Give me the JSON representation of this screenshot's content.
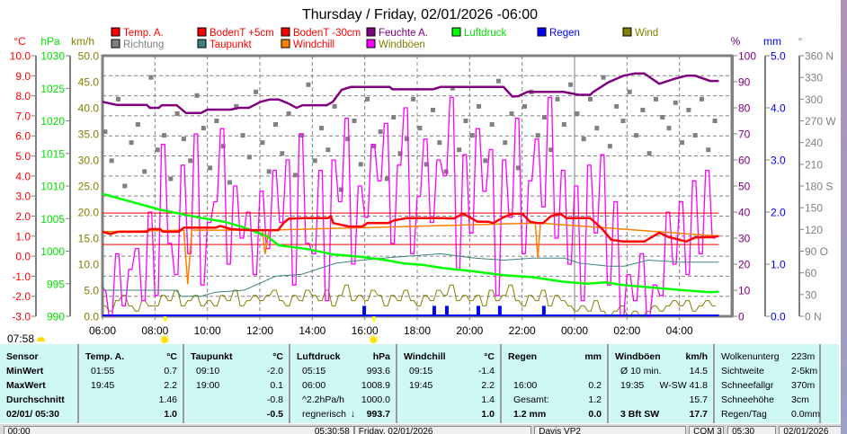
{
  "chart_data": {
    "type": "line",
    "title": "Thursday / Friday, 02/01/2026  -06:00",
    "x_unit": "hours since 06:00",
    "xlim": [
      0,
      24
    ],
    "x_tick_labels": [
      "06:00",
      "08:00",
      "10:00",
      "12:00",
      "14:00",
      "16:00",
      "18:00",
      "20:00",
      "22:00",
      "00:00",
      "02:00",
      "04:00"
    ],
    "grid": true,
    "legend": [
      {
        "label": "Temp. A.",
        "color": "#ff0000",
        "text_color": "#ff0000"
      },
      {
        "label": "BodenT +5cm",
        "color": "#ff0000",
        "text_color": "#ff0000"
      },
      {
        "label": "BodenT -30cm",
        "color": "#ff0000",
        "text_color": "#ff0000"
      },
      {
        "label": "Feuchte A.",
        "color": "#800080",
        "text_color": "#800080"
      },
      {
        "label": "Luftdruck",
        "color": "#00ff00",
        "text_color": "#00e000"
      },
      {
        "label": "Regen",
        "color": "#0000ff",
        "text_color": "#0000ff"
      },
      {
        "label": "Wind",
        "color": "#808000",
        "text_color": "#808000"
      },
      {
        "label": "Richtung",
        "color": "#808080",
        "text_color": "#808080"
      },
      {
        "label": "Taupunkt",
        "color": "#408080",
        "text_color": "#ff0000"
      },
      {
        "label": "Windchill",
        "color": "#ff8000",
        "text_color": "#ff0000"
      },
      {
        "label": "Windböen",
        "color": "#ff00ff",
        "text_color": "#808000"
      }
    ],
    "axes": {
      "temp": {
        "unit": "°C",
        "range": [
          -3,
          10
        ],
        "color": "#ff0000"
      },
      "pressure": {
        "unit": "hPa",
        "range": [
          990,
          1030
        ],
        "color": "#00e000"
      },
      "wind": {
        "unit": "km/h",
        "range": [
          0,
          50
        ],
        "color": "#808000"
      },
      "humidity": {
        "unit": "%",
        "range": [
          0,
          100
        ],
        "color": "#800080"
      },
      "rain": {
        "unit": "mm",
        "range": [
          0,
          5
        ],
        "color": "#0000ff"
      },
      "direction": {
        "unit": "°",
        "range": [
          0,
          360
        ],
        "color": "#808080",
        "compass": {
          "0": "N",
          "90": "O",
          "180": "S",
          "270": "W",
          "360": "N"
        }
      }
    },
    "series": {
      "temp": [
        [
          0,
          1.22
        ],
        [
          0.3,
          1.1
        ],
        [
          0.6,
          1.22
        ],
        [
          1.7,
          1.22
        ],
        [
          1.8,
          1.35
        ],
        [
          2.2,
          1.35
        ],
        [
          2.3,
          1.22
        ],
        [
          2.9,
          1.22
        ],
        [
          3.1,
          1.42
        ],
        [
          4.3,
          1.42
        ],
        [
          4.5,
          1.5
        ],
        [
          4.9,
          1.35
        ],
        [
          5.6,
          1.3
        ],
        [
          6.7,
          1.3
        ],
        [
          6.9,
          1.65
        ],
        [
          7.1,
          1.87
        ],
        [
          7.7,
          1.9
        ],
        [
          8.6,
          1.9
        ],
        [
          8.7,
          2.0
        ],
        [
          8.8,
          1.65
        ],
        [
          9.4,
          1.48
        ],
        [
          9.9,
          1.48
        ],
        [
          10.1,
          1.65
        ],
        [
          10.9,
          1.65
        ],
        [
          11.1,
          1.78
        ],
        [
          11.6,
          1.9
        ],
        [
          12.9,
          1.9
        ],
        [
          13.4,
          1.88
        ],
        [
          13.75,
          2.12
        ],
        [
          14.3,
          1.72
        ],
        [
          14.7,
          1.72
        ],
        [
          14.9,
          1.65
        ],
        [
          15.3,
          1.95
        ],
        [
          15.65,
          2.12
        ],
        [
          16.0,
          2.12
        ],
        [
          16.3,
          1.72
        ],
        [
          16.6,
          1.65
        ],
        [
          16.8,
          1.65
        ],
        [
          17.1,
          2.0
        ],
        [
          17.45,
          2.12
        ],
        [
          17.7,
          1.9
        ],
        [
          18.6,
          1.9
        ],
        [
          19.06,
          1.35
        ],
        [
          19.4,
          0.82
        ],
        [
          19.86,
          0.73
        ],
        [
          20.66,
          0.73
        ],
        [
          21.23,
          1.17
        ],
        [
          21.6,
          0.95
        ],
        [
          21.9,
          0.85
        ],
        [
          22.25,
          0.73
        ],
        [
          22.6,
          0.93
        ],
        [
          23.2,
          0.95
        ],
        [
          23.5,
          1.0
        ]
      ],
      "windchill": [
        [
          0,
          1.22
        ],
        [
          3.1,
          1.3
        ],
        [
          3.25,
          -1.4
        ],
        [
          3.4,
          1.3
        ],
        [
          6.1,
          1.3
        ],
        [
          6.2,
          0.1
        ],
        [
          6.35,
          1.3
        ],
        [
          16.5,
          1.65
        ],
        [
          16.6,
          -0.1
        ],
        [
          16.7,
          1.65
        ],
        [
          23.5,
          1.0
        ]
      ],
      "dewpoint": [
        [
          0,
          -1.48
        ],
        [
          0.1,
          -1.7
        ],
        [
          2.8,
          -1.7
        ],
        [
          3.0,
          -2.0
        ],
        [
          3.75,
          -2.0
        ],
        [
          4.3,
          -1.8
        ],
        [
          5.4,
          -1.7
        ],
        [
          6.0,
          -1.35
        ],
        [
          6.6,
          -1.0
        ],
        [
          7.6,
          -0.9
        ],
        [
          8.9,
          -0.35
        ],
        [
          9.9,
          -0.2
        ],
        [
          11.1,
          -0.05
        ],
        [
          12.9,
          0.12
        ],
        [
          14.2,
          -0.1
        ],
        [
          15.3,
          -0.2
        ],
        [
          16.4,
          -0.1
        ],
        [
          17.6,
          -0.1
        ],
        [
          18.2,
          -0.35
        ],
        [
          19.3,
          -0.5
        ],
        [
          19.9,
          -0.5
        ],
        [
          20.8,
          -0.2
        ],
        [
          22.0,
          -0.3
        ],
        [
          23.5,
          -0.3
        ]
      ],
      "soil_5cm": [
        [
          0,
          2.15
        ],
        [
          23.5,
          2.15
        ]
      ],
      "soil_30cm": [
        [
          0,
          0.58
        ],
        [
          23.5,
          0.58
        ]
      ],
      "humidity": [
        [
          0,
          82.3
        ],
        [
          0.55,
          81.1
        ],
        [
          1.69,
          81.1
        ],
        [
          1.8,
          80
        ],
        [
          2.15,
          80
        ],
        [
          2.26,
          81
        ],
        [
          2.83,
          81
        ],
        [
          3.18,
          78
        ],
        [
          3.75,
          78
        ],
        [
          4.0,
          79.3
        ],
        [
          4.89,
          79.3
        ],
        [
          5.2,
          80
        ],
        [
          5.58,
          80
        ],
        [
          6.03,
          82.3
        ],
        [
          6.38,
          83.2
        ],
        [
          6.72,
          83.2
        ],
        [
          7.06,
          81.8
        ],
        [
          7.4,
          80
        ],
        [
          7.63,
          81
        ],
        [
          8.55,
          81
        ],
        [
          8.78,
          82.3
        ],
        [
          9.12,
          86.9
        ],
        [
          9.46,
          88
        ],
        [
          10.95,
          88
        ],
        [
          11.06,
          87.1
        ],
        [
          12.6,
          87.1
        ],
        [
          12.89,
          88
        ],
        [
          15.29,
          88
        ],
        [
          15.63,
          84.3
        ],
        [
          15.86,
          84.5
        ],
        [
          16.2,
          86.1
        ],
        [
          17.58,
          86.1
        ],
        [
          18.15,
          85
        ],
        [
          18.6,
          85
        ],
        [
          18.7,
          86
        ],
        [
          19.29,
          89.8
        ],
        [
          19.86,
          92.3
        ],
        [
          20.3,
          93.2
        ],
        [
          20.66,
          93.2
        ],
        [
          21.23,
          89.2
        ],
        [
          21.8,
          91.1
        ],
        [
          22.26,
          92.3
        ],
        [
          22.6,
          92.3
        ],
        [
          23.17,
          90.3
        ],
        [
          23.5,
          90.3
        ]
      ],
      "pressure": [
        [
          0,
          1008.8
        ],
        [
          2.16,
          1006.4
        ],
        [
          3.63,
          1005.2
        ],
        [
          4.66,
          1004.5
        ],
        [
          5.35,
          1003.7
        ],
        [
          6.27,
          1002.3
        ],
        [
          6.72,
          1000.9
        ],
        [
          7.85,
          1000.3
        ],
        [
          8.78,
          999.5
        ],
        [
          9.9,
          999.1
        ],
        [
          10.83,
          998.6
        ],
        [
          11.52,
          998.1
        ],
        [
          12.2,
          997.9
        ],
        [
          13.0,
          997.4
        ],
        [
          14.16,
          996.9
        ],
        [
          15.29,
          996.3
        ],
        [
          16.42,
          996.0
        ],
        [
          17.59,
          995.3
        ],
        [
          18.48,
          995.0
        ],
        [
          19.16,
          995.2
        ],
        [
          19.85,
          994.8
        ],
        [
          21.01,
          994.4
        ],
        [
          22.15,
          994.0
        ],
        [
          23.17,
          993.7
        ],
        [
          23.5,
          993.8
        ]
      ],
      "rain": [
        [
          9.98,
          0.2
        ],
        [
          12.65,
          0.2
        ],
        [
          13.13,
          0.2
        ],
        [
          14.33,
          0.2
        ],
        [
          15.15,
          0.2
        ],
        [
          16.83,
          0.2
        ]
      ],
      "step_hours": 0.25,
      "gusts": [
        5,
        0,
        12,
        2,
        9,
        13,
        3,
        20,
        4,
        33,
        14,
        8,
        29,
        12,
        35,
        6,
        18,
        22,
        36,
        10,
        25,
        15,
        20,
        8,
        24,
        13,
        28,
        18,
        30,
        6,
        35,
        14,
        12,
        28,
        3,
        30,
        22,
        38,
        10,
        25,
        19,
        33,
        26,
        37,
        14,
        29,
        40,
        12,
        23,
        34,
        18,
        30,
        27,
        42,
        9,
        31,
        16,
        36,
        24,
        32,
        4,
        30,
        19,
        38,
        12,
        26,
        34,
        21,
        42,
        15,
        28,
        10,
        25,
        3,
        29,
        16,
        31,
        6,
        22,
        0,
        8,
        3,
        12,
        0,
        6,
        4,
        20,
        10,
        22,
        8,
        26,
        12,
        28,
        15
      ],
      "wind": [
        2,
        1,
        3,
        4,
        2,
        1,
        3,
        2,
        2,
        4,
        3,
        5,
        2,
        3,
        4,
        2,
        3,
        2,
        4,
        3,
        5,
        2,
        3,
        4,
        3,
        4,
        5,
        3,
        2,
        4,
        3,
        5,
        4,
        3,
        5,
        2,
        4,
        6,
        3,
        4,
        3,
        5,
        4,
        2,
        4,
        3,
        5,
        3,
        2,
        4,
        3,
        5,
        4,
        6,
        3,
        4,
        3,
        4,
        2,
        5,
        3,
        4,
        6,
        3,
        2,
        4,
        3,
        5,
        2,
        4,
        3,
        2,
        1,
        2,
        1,
        3,
        1,
        0,
        1,
        2,
        0,
        1,
        0,
        1,
        2,
        1,
        2,
        3,
        2,
        3,
        1,
        2,
        3,
        2
      ],
      "direction": [
        255,
        215,
        300,
        180,
        240,
        265,
        200,
        330,
        230,
        250,
        190,
        280,
        245,
        215,
        305,
        260,
        205,
        270,
        235,
        185,
        290,
        250,
        220,
        310,
        240,
        200,
        265,
        225,
        280,
        195,
        250,
        320,
        215,
        260,
        230,
        290,
        175,
        245,
        270,
        210,
        300,
        235,
        255,
        190,
        275,
        225,
        245,
        300,
        260,
        210,
        285,
        240,
        200,
        315,
        230,
        270,
        250,
        290,
        215,
        265,
        325,
        240,
        280,
        205,
        290,
        310,
        250,
        275,
        230,
        300,
        265,
        320,
        280,
        245,
        300,
        260,
        330,
        235,
        290,
        270,
        310,
        250,
        285,
        225,
        300,
        275,
        260,
        295,
        240,
        285,
        250,
        300,
        230,
        270
      ]
    },
    "sun_events": [
      2.37,
      10.33
    ]
  },
  "sunrise": {
    "time": "07:58"
  },
  "table": {
    "columns": [
      {
        "header": "Sensor",
        "unit": "",
        "rows": [
          [
            "MinWert",
            ""
          ],
          [
            "MaxWert",
            ""
          ],
          [
            "Durchschnitt",
            ""
          ],
          [
            "02/01/ 05:30",
            ""
          ]
        ]
      },
      {
        "header": "Temp. A.",
        "unit": "°C",
        "rows": [
          [
            "01:55",
            "0.7"
          ],
          [
            "19:45",
            "2.2"
          ],
          [
            "",
            "1.46"
          ],
          [
            "",
            "1.0"
          ]
        ]
      },
      {
        "header": "Taupunkt",
        "unit": "°C",
        "rows": [
          [
            "09:10",
            "-2.0"
          ],
          [
            "19:00",
            "0.1"
          ],
          [
            "",
            "-0.8"
          ],
          [
            "",
            "-0.5"
          ]
        ]
      },
      {
        "header": "Luftdruck",
        "unit": "hPa",
        "rows": [
          [
            "05:15",
            "993.6"
          ],
          [
            "06:00",
            "1008.9"
          ],
          [
            "^2.2hPa/h",
            "1000.0"
          ],
          [
            "regnerisch",
            "993.7"
          ]
        ]
      },
      {
        "header": "Windchill",
        "unit": "°C",
        "rows": [
          [
            "09:15",
            "-1.4"
          ],
          [
            "19:45",
            "2.2"
          ],
          [
            "",
            "1.4"
          ],
          [
            "",
            "1.0"
          ]
        ]
      },
      {
        "header": "Regen",
        "unit": "mm",
        "rows": [
          [
            "",
            ""
          ],
          [
            "16:00",
            "0.2"
          ],
          [
            "Gesamt:",
            "1.2"
          ],
          [
            "1.2 mm",
            "0.0"
          ]
        ]
      },
      {
        "header": "Windböen",
        "unit": "km/h",
        "rows": [
          [
            "Ø 10 min.",
            "14.5"
          ],
          [
            "19:35",
            "W-SW 41.8"
          ],
          [
            "",
            "15.7"
          ],
          [
            "3 Bft SW",
            "17.7"
          ]
        ]
      }
    ],
    "pressure_trend_arrow": "↓",
    "extra": [
      [
        "Wolkenunterg",
        "223m"
      ],
      [
        "Sichtweite",
        "2-5km"
      ],
      [
        "Schneefallgr",
        "370m"
      ],
      [
        "Schneehöhe",
        "3cm"
      ],
      [
        "Regen/Tag",
        "0.0mm"
      ]
    ]
  },
  "status_bar": [
    "00:00",
    "05:30:58",
    "Friday, 02/01/2026",
    "Davis VP2",
    "COM 3",
    "05:30",
    "02/01/2026"
  ]
}
